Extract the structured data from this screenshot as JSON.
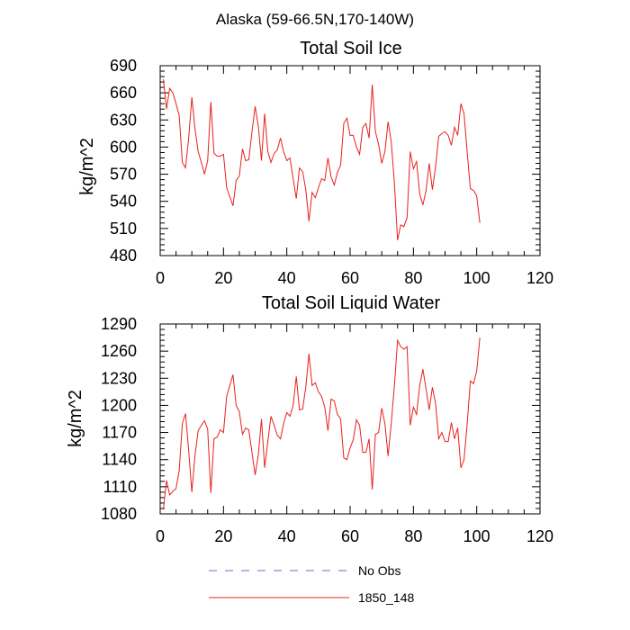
{
  "figure_title": "Alaska (59-66.5N,170-140W)",
  "legend": [
    {
      "label": "No Obs",
      "color": "#6a6ad8",
      "style": "dashed"
    },
    {
      "label": "1850_148",
      "color": "#e8201c",
      "style": "solid"
    }
  ],
  "chart_data": [
    {
      "type": "line",
      "title": "Total Soil Ice",
      "xlabel": "",
      "ylabel": "kg/m^2",
      "xlim": [
        0,
        120
      ],
      "ylim": [
        480,
        690
      ],
      "xticks": [
        0,
        20,
        40,
        60,
        80,
        100,
        120
      ],
      "yticks": [
        480,
        510,
        540,
        570,
        600,
        630,
        660,
        690
      ],
      "grid": false,
      "series": [
        {
          "name": "1850_148",
          "color": "#e8201c",
          "x": [
            1,
            2,
            3,
            4,
            5,
            6,
            7,
            8,
            9,
            10,
            11,
            12,
            13,
            14,
            15,
            16,
            17,
            18,
            19,
            20,
            21,
            22,
            23,
            24,
            25,
            26,
            27,
            28,
            29,
            30,
            31,
            32,
            33,
            34,
            35,
            36,
            37,
            38,
            39,
            40,
            41,
            42,
            43,
            44,
            45,
            46,
            47,
            48,
            49,
            50,
            51,
            52,
            53,
            54,
            55,
            56,
            57,
            58,
            59,
            60,
            61,
            62,
            63,
            64,
            65,
            66,
            67,
            68,
            69,
            70,
            71,
            72,
            73,
            74,
            75,
            76,
            77,
            78,
            79,
            80,
            81,
            82,
            83,
            84,
            85,
            86,
            87,
            88,
            89,
            90,
            91,
            92,
            93,
            94,
            95,
            96,
            97,
            98,
            99,
            100,
            101
          ],
          "y": [
            675,
            642,
            665,
            660,
            648,
            635,
            583,
            577,
            610,
            655,
            620,
            595,
            583,
            570,
            585,
            650,
            593,
            590,
            590,
            592,
            555,
            545,
            535,
            563,
            568,
            598,
            585,
            586,
            617,
            645,
            623,
            585,
            637,
            595,
            583,
            593,
            597,
            610,
            595,
            585,
            588,
            565,
            543,
            577,
            573,
            553,
            518,
            550,
            544,
            555,
            565,
            563,
            588,
            567,
            558,
            572,
            580,
            626,
            632,
            613,
            613,
            600,
            592,
            622,
            626,
            610,
            669,
            617,
            603,
            582,
            595,
            628,
            606,
            560,
            497,
            514,
            512,
            522,
            595,
            576,
            584,
            548,
            536,
            552,
            582,
            553,
            578,
            612,
            615,
            617,
            613,
            602,
            622,
            613,
            648,
            637,
            594,
            554,
            552,
            546,
            516
          ]
        }
      ]
    },
    {
      "type": "line",
      "title": "Total Soil Liquid Water",
      "xlabel": "",
      "ylabel": "kg/m^2",
      "xlim": [
        0,
        120
      ],
      "ylim": [
        1080,
        1290
      ],
      "xticks": [
        0,
        20,
        40,
        60,
        80,
        100,
        120
      ],
      "yticks": [
        1080,
        1110,
        1140,
        1170,
        1200,
        1230,
        1260,
        1290
      ],
      "grid": false,
      "series": [
        {
          "name": "1850_148",
          "color": "#e8201c",
          "x": [
            1,
            2,
            3,
            4,
            5,
            6,
            7,
            8,
            9,
            10,
            11,
            12,
            13,
            14,
            15,
            16,
            17,
            18,
            19,
            20,
            21,
            22,
            23,
            24,
            25,
            26,
            27,
            28,
            29,
            30,
            31,
            32,
            33,
            34,
            35,
            36,
            37,
            38,
            39,
            40,
            41,
            42,
            43,
            44,
            45,
            46,
            47,
            48,
            49,
            50,
            51,
            52,
            53,
            54,
            55,
            56,
            57,
            58,
            59,
            60,
            61,
            62,
            63,
            64,
            65,
            66,
            67,
            68,
            69,
            70,
            71,
            72,
            73,
            74,
            75,
            76,
            77,
            78,
            79,
            80,
            81,
            82,
            83,
            84,
            85,
            86,
            87,
            88,
            89,
            90,
            91,
            92,
            93,
            94,
            95,
            96,
            97,
            98,
            99,
            100,
            101
          ],
          "y": [
            1085,
            1117,
            1101,
            1105,
            1108,
            1128,
            1180,
            1191,
            1150,
            1104,
            1145,
            1172,
            1178,
            1183,
            1174,
            1103,
            1163,
            1165,
            1173,
            1170,
            1210,
            1222,
            1234,
            1200,
            1193,
            1168,
            1175,
            1173,
            1148,
            1123,
            1145,
            1185,
            1131,
            1160,
            1188,
            1178,
            1167,
            1163,
            1180,
            1192,
            1188,
            1200,
            1232,
            1195,
            1196,
            1220,
            1257,
            1222,
            1225,
            1215,
            1210,
            1198,
            1172,
            1207,
            1205,
            1190,
            1185,
            1142,
            1140,
            1153,
            1162,
            1184,
            1178,
            1148,
            1148,
            1163,
            1107,
            1168,
            1170,
            1197,
            1180,
            1144,
            1180,
            1222,
            1272,
            1265,
            1262,
            1265,
            1178,
            1198,
            1190,
            1222,
            1240,
            1218,
            1195,
            1220,
            1202,
            1163,
            1170,
            1160,
            1160,
            1181,
            1163,
            1175,
            1131,
            1140,
            1180,
            1227,
            1224,
            1238,
            1275
          ]
        }
      ]
    }
  ]
}
